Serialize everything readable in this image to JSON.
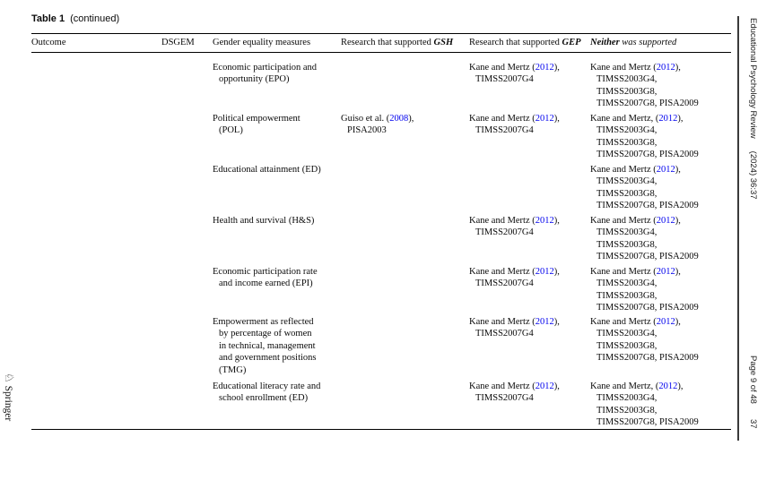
{
  "page": {
    "background": "#ffffff",
    "text_color": "#0a0a0a",
    "citation_link_color": "#0000EE"
  },
  "caption": {
    "table_label": "Table 1",
    "continued_label": "(continued)"
  },
  "table": {
    "column_keys": [
      "outcome",
      "dsgem",
      "measure",
      "gsh",
      "gep",
      "neither"
    ],
    "headers": [
      [
        {
          "t": "Outcome"
        }
      ],
      [
        {
          "t": "DSGEM"
        }
      ],
      [
        {
          "t": "Gender equality measures"
        }
      ],
      [
        {
          "t": "Research that supported "
        },
        {
          "t": "GSH",
          "bi": true
        }
      ],
      [
        {
          "t": "Research that supported "
        },
        {
          "t": "GEP",
          "bi": true
        }
      ],
      [
        {
          "t": "Neither",
          "bi": true
        },
        {
          "t": " was supported",
          "i": true
        }
      ]
    ],
    "rows": [
      {
        "outcome": [],
        "dsgem": [],
        "measure": [
          [
            "Economic participation and"
          ],
          [
            "opportunity (EPO)"
          ]
        ],
        "gsh": [],
        "gep": [
          [
            "Kane and Mertz (",
            {
              "t": "2012",
              "link": true
            },
            "),"
          ],
          [
            "TIMSS2007G4"
          ]
        ],
        "neither": [
          [
            "Kane and Mertz (",
            {
              "t": "2012",
              "link": true
            },
            "),"
          ],
          [
            "TIMSS2003G4,"
          ],
          [
            "TIMSS2003G8,"
          ],
          [
            "TIMSS2007G8, PISA2009"
          ]
        ]
      },
      {
        "outcome": [],
        "dsgem": [],
        "measure": [
          [
            "Political empowerment"
          ],
          [
            "(POL)"
          ]
        ],
        "gsh": [
          [
            "Guiso et al. (",
            {
              "t": "2008",
              "link": true
            },
            "),"
          ],
          [
            "PISA2003"
          ]
        ],
        "gep": [
          [
            "Kane and Mertz (",
            {
              "t": "2012",
              "link": true
            },
            "),"
          ],
          [
            "TIMSS2007G4"
          ]
        ],
        "neither": [
          [
            "Kane and Mertz, (",
            {
              "t": "2012",
              "link": true
            },
            "),"
          ],
          [
            "TIMSS2003G4,"
          ],
          [
            "TIMSS2003G8,"
          ],
          [
            "TIMSS2007G8, PISA2009"
          ]
        ]
      },
      {
        "outcome": [],
        "dsgem": [],
        "measure": [
          [
            "Educational attainment (ED)"
          ]
        ],
        "gsh": [],
        "gep": [],
        "neither": [
          [
            "Kane and Mertz (",
            {
              "t": "2012",
              "link": true
            },
            "),"
          ],
          [
            "TIMSS2003G4,"
          ],
          [
            "TIMSS2003G8,"
          ],
          [
            "TIMSS2007G8, PISA2009"
          ]
        ]
      },
      {
        "outcome": [],
        "dsgem": [],
        "measure": [
          [
            "Health and survival (H&S)"
          ]
        ],
        "gsh": [],
        "gep": [
          [
            "Kane and Mertz (",
            {
              "t": "2012",
              "link": true
            },
            "),"
          ],
          [
            "TIMSS2007G4"
          ]
        ],
        "neither": [
          [
            "Kane and Mertz (",
            {
              "t": "2012",
              "link": true
            },
            "),"
          ],
          [
            "TIMSS2003G4,"
          ],
          [
            "TIMSS2003G8,"
          ],
          [
            "TIMSS2007G8, PISA2009"
          ]
        ]
      },
      {
        "outcome": [],
        "dsgem": [],
        "measure": [
          [
            "Economic participation rate"
          ],
          [
            "and income earned (EPI)"
          ]
        ],
        "gsh": [],
        "gep": [
          [
            "Kane and Mertz (",
            {
              "t": "2012",
              "link": true
            },
            "),"
          ],
          [
            "TIMSS2007G4"
          ]
        ],
        "neither": [
          [
            "Kane and Mertz (",
            {
              "t": "2012",
              "link": true
            },
            "),"
          ],
          [
            "TIMSS2003G4,"
          ],
          [
            "TIMSS2003G8,"
          ],
          [
            "TIMSS2007G8, PISA2009"
          ]
        ]
      },
      {
        "outcome": [],
        "dsgem": [],
        "measure": [
          [
            "Empowerment as reflected"
          ],
          [
            "by percentage of women"
          ],
          [
            "in technical, management"
          ],
          [
            "and government positions"
          ],
          [
            "(TMG)"
          ]
        ],
        "gsh": [],
        "gep": [
          [
            "Kane and Mertz (",
            {
              "t": "2012",
              "link": true
            },
            "),"
          ],
          [
            "TIMSS2007G4"
          ]
        ],
        "neither": [
          [
            "Kane and Mertz (",
            {
              "t": "2012",
              "link": true
            },
            "),"
          ],
          [
            "TIMSS2003G4,"
          ],
          [
            "TIMSS2003G8,"
          ],
          [
            "TIMSS2007G8, PISA2009"
          ]
        ]
      },
      {
        "outcome": [],
        "dsgem": [],
        "measure": [
          [
            "Educational literacy rate and"
          ],
          [
            "school enrollment (ED)"
          ]
        ],
        "gsh": [],
        "gep": [
          [
            "Kane and Mertz (",
            {
              "t": "2012",
              "link": true
            },
            "),"
          ],
          [
            "TIMSS2007G4"
          ]
        ],
        "neither": [
          [
            "Kane and Mertz, (",
            {
              "t": "2012",
              "link": true
            },
            "),"
          ],
          [
            "TIMSS2003G4,"
          ],
          [
            "TIMSS2003G8,"
          ],
          [
            "TIMSS2007G8, PISA2009"
          ]
        ]
      }
    ]
  },
  "sidebar_right": {
    "journal_title": "Educational Psychology Review",
    "issue": "(2024) 36:37",
    "page_info": "Page 9 of 48",
    "article_number": "37"
  },
  "footer_left": {
    "publisher": "Springer",
    "logo_icon": "springer-knight-icon",
    "knight_glyph": "♘"
  }
}
